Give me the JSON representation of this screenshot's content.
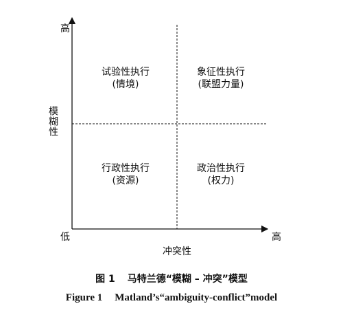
{
  "axes": {
    "y_high": "高",
    "y_low": "低",
    "y_label": "模糊性",
    "x_high": "高",
    "x_label": "冲突性"
  },
  "quadrants": [
    {
      "title": "试验性执行",
      "subtitle": "(情境)"
    },
    {
      "title": "象征性执行",
      "subtitle": "(联盟力量)"
    },
    {
      "title": "行政性执行",
      "subtitle": "(资源)"
    },
    {
      "title": "政治性执行",
      "subtitle": "(权力)"
    }
  ],
  "caption": {
    "zh_label": "图 1",
    "zh_text": "马特兰德“模糊 – 冲突”模型",
    "en_label": "Figure 1",
    "en_text": "Matland’s“ambiguity-conflict”model"
  }
}
